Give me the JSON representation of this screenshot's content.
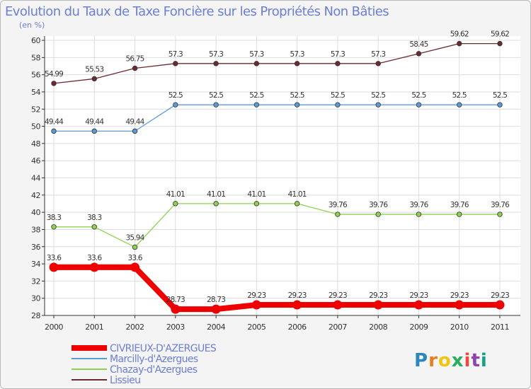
{
  "chart_data": {
    "type": "line",
    "title": "Evolution du Taux de Taxe Foncière sur les Propriétés Non Bâties",
    "ylabel": "(en %)",
    "xlabel": "",
    "ylim": [
      28,
      60
    ],
    "yticks": [
      28,
      30,
      32,
      34,
      36,
      38,
      40,
      42,
      44,
      46,
      48,
      50,
      52,
      54,
      56,
      58,
      60
    ],
    "categories": [
      "2000",
      "2001",
      "2002",
      "2003",
      "2004",
      "2005",
      "2006",
      "2007",
      "2008",
      "2009",
      "2010",
      "2011"
    ],
    "legend_position": "bottom-left",
    "series": [
      {
        "name": "Lissieu",
        "color": "#6b2a2f",
        "values": [
          54.99,
          55.53,
          56.75,
          57.3,
          57.3,
          57.3,
          57.3,
          57.3,
          57.3,
          58.45,
          59.62,
          59.62
        ],
        "labels": [
          "54.99",
          "55.53",
          "56.75",
          "57.3",
          "57.3",
          "57.3",
          "57.3",
          "57.3",
          "57.3",
          "58.45",
          "59.62",
          "59.62"
        ]
      },
      {
        "name": "Marcilly-d'Azergues",
        "color": "#5b9bd5",
        "values": [
          49.44,
          49.44,
          49.44,
          52.5,
          52.5,
          52.5,
          52.5,
          52.5,
          52.5,
          52.5,
          52.5,
          52.5
        ],
        "labels": [
          "49.44",
          "49.44",
          "49.44",
          "52.5",
          "52.5",
          "52.5",
          "52.5",
          "52.5",
          "52.5",
          "52.5",
          "52.5",
          "52.5"
        ]
      },
      {
        "name": "Chazay-d'Azergues",
        "color": "#8fd14f",
        "values": [
          38.3,
          38.3,
          35.94,
          41.01,
          41.01,
          41.01,
          41.01,
          39.76,
          39.76,
          39.76,
          39.76,
          39.76
        ],
        "labels": [
          "38.3",
          "38.3",
          "35.94",
          "41.01",
          "41.01",
          "41.01",
          "41.01",
          "39.76",
          "39.76",
          "39.76",
          "39.76",
          "39.76"
        ]
      },
      {
        "name": "CIVRIEUX-D'AZERGUES",
        "color": "#ee0000",
        "values": [
          33.6,
          33.6,
          33.6,
          28.73,
          28.73,
          29.23,
          29.23,
          29.23,
          29.23,
          29.23,
          29.23,
          29.23
        ],
        "labels": [
          "33.6",
          "33.6",
          "33.6",
          "28.73",
          "28.73",
          "29.23",
          "29.23",
          "29.23",
          "29.23",
          "29.23",
          "29.23",
          "29.23"
        ]
      }
    ],
    "legend": [
      {
        "name": "CIVRIEUX-D'AZERGUES",
        "color": "#ee0000",
        "thick": true
      },
      {
        "name": "Marcilly-d'Azergues",
        "color": "#5b9bd5",
        "thick": false
      },
      {
        "name": "Chazay-d'Azergues",
        "color": "#8fd14f",
        "thick": false
      },
      {
        "name": "Lissieu",
        "color": "#6b2a2f",
        "thick": false
      }
    ]
  },
  "branding": {
    "logo_text": "Proxiti",
    "logo_colors": [
      "#2e86c1",
      "#e67e22",
      "#f1c40f",
      "#27ae60",
      "#e74c3c",
      "#8e44ad",
      "#16a085"
    ]
  }
}
